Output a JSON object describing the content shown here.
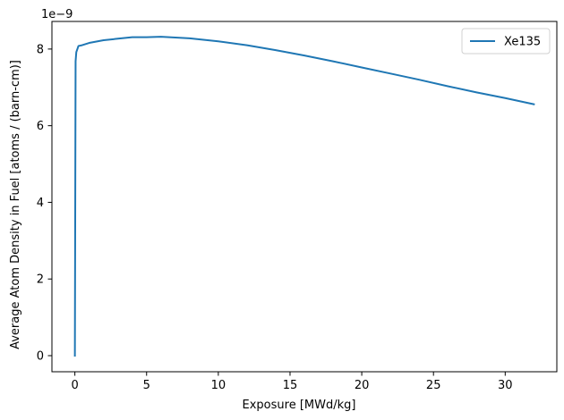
{
  "chart_data": {
    "type": "line",
    "xlabel": "Exposure [MWd/kg]",
    "ylabel": "Average Atom Density in Fuel [atoms / (barn-cm)]",
    "y_offset_label": "1e−9",
    "xlim": [
      -1.6,
      33.6
    ],
    "ylim": [
      -0.42,
      8.72
    ],
    "y_scale_factor": 1e-09,
    "xticks": [
      0,
      5,
      10,
      15,
      20,
      25,
      30
    ],
    "xtick_labels": [
      "0",
      "5",
      "10",
      "15",
      "20",
      "25",
      "30"
    ],
    "yticks": [
      0,
      2,
      4,
      6,
      8
    ],
    "ytick_labels": [
      "0",
      "2",
      "4",
      "6",
      "8"
    ],
    "grid": false,
    "legend_position": "top-right",
    "series": [
      {
        "name": "Xe135",
        "color": "#1f77b4",
        "x": [
          0,
          0.05,
          0.1,
          0.25,
          0.5,
          1,
          2,
          3,
          4,
          5,
          6,
          8,
          10,
          12,
          14,
          16,
          18,
          20,
          22,
          24,
          26,
          28,
          30,
          32
        ],
        "y": [
          0,
          7.68,
          7.92,
          8.08,
          8.1,
          8.16,
          8.23,
          8.27,
          8.31,
          8.31,
          8.32,
          8.28,
          8.2,
          8.1,
          7.97,
          7.83,
          7.68,
          7.52,
          7.36,
          7.2,
          7.03,
          6.87,
          6.72,
          6.56
        ]
      }
    ]
  }
}
